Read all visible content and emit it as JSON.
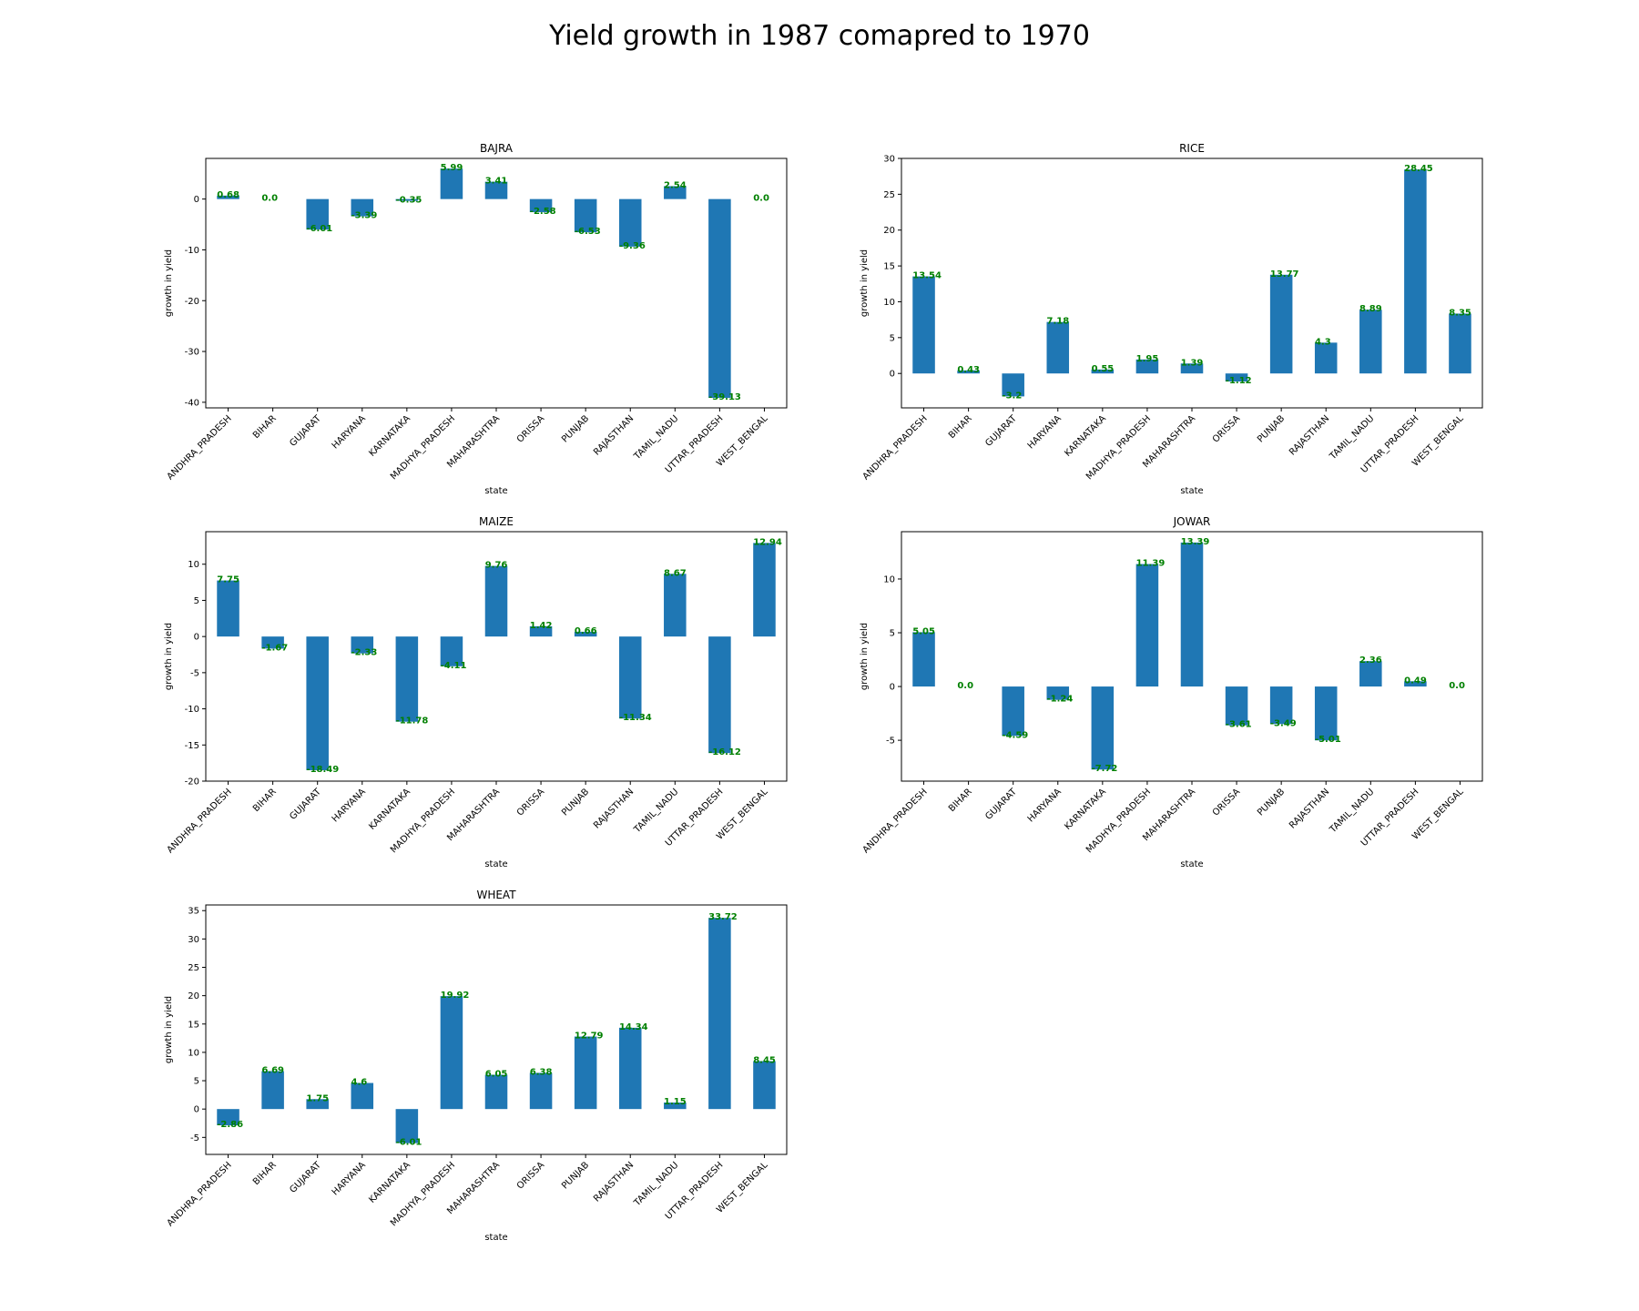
{
  "suptitle": "Yield growth in 1987 comapred to 1970",
  "bar_color": "#1f77b4",
  "label_color": "#008000",
  "chart_data": [
    {
      "type": "bar",
      "title": "BAJRA",
      "xlabel": "state",
      "ylabel": "growth in yield",
      "categories": [
        "ANDHRA_PRADESH",
        "BIHAR",
        "GUJARAT",
        "HARYANA",
        "KARNATAKA",
        "MADHYA_PRADESH",
        "MAHARASHTRA",
        "ORISSA",
        "PUNJAB",
        "RAJASTHAN",
        "TAMIL_NADU",
        "UTTAR_PRADESH",
        "WEST_BENGAL"
      ],
      "values": [
        0.68,
        0.0,
        -6.01,
        -3.39,
        -0.35,
        5.99,
        3.41,
        -2.58,
        -6.53,
        -9.36,
        2.54,
        -39.13,
        0.0
      ],
      "value_labels": [
        "0.68",
        "0.0",
        "-6.01",
        "-3.39",
        "-0.35",
        "5.99",
        "3.41",
        "-2.58",
        "-6.53",
        "-9.36",
        "2.54",
        "-39.13",
        "0.0"
      ],
      "ylim": [
        -41.1,
        8.0
      ],
      "yticks": [
        -40,
        -30,
        -20,
        -10,
        0
      ]
    },
    {
      "type": "bar",
      "title": "RICE",
      "xlabel": "state",
      "ylabel": "growth in yield",
      "categories": [
        "ANDHRA_PRADESH",
        "BIHAR",
        "GUJARAT",
        "HARYANA",
        "KARNATAKA",
        "MADHYA_PRADESH",
        "MAHARASHTRA",
        "ORISSA",
        "PUNJAB",
        "RAJASTHAN",
        "TAMIL_NADU",
        "UTTAR_PRADESH",
        "WEST_BENGAL"
      ],
      "values": [
        13.54,
        0.43,
        -3.2,
        7.18,
        0.55,
        1.95,
        1.39,
        -1.12,
        13.77,
        4.3,
        8.89,
        28.45,
        8.35
      ],
      "value_labels": [
        "13.54",
        "0.43",
        "-3.2",
        "7.18",
        "0.55",
        "1.95",
        "1.39",
        "-1.12",
        "13.77",
        "4.3",
        "8.89",
        "28.45",
        "8.35"
      ],
      "ylim": [
        -4.8,
        30.0
      ],
      "yticks": [
        0,
        5,
        10,
        15,
        20,
        25,
        30
      ]
    },
    {
      "type": "bar",
      "title": "MAIZE",
      "xlabel": "state",
      "ylabel": "growth in yield",
      "categories": [
        "ANDHRA_PRADESH",
        "BIHAR",
        "GUJARAT",
        "HARYANA",
        "KARNATAKA",
        "MADHYA_PRADESH",
        "MAHARASHTRA",
        "ORISSA",
        "PUNJAB",
        "RAJASTHAN",
        "TAMIL_NADU",
        "UTTAR_PRADESH",
        "WEST_BENGAL"
      ],
      "values": [
        7.75,
        -1.67,
        -18.49,
        -2.33,
        -11.78,
        -4.11,
        9.76,
        1.42,
        0.66,
        -11.34,
        8.67,
        -16.12,
        12.94
      ],
      "value_labels": [
        "7.75",
        "-1.67",
        "-18.49",
        "-2.33",
        "-11.78",
        "-4.11",
        "9.76",
        "1.42",
        "0.66",
        "-11.34",
        "8.67",
        "-16.12",
        "12.94"
      ],
      "ylim": [
        -20.0,
        14.5
      ],
      "yticks": [
        -20,
        -15,
        -10,
        -5,
        0,
        5,
        10
      ]
    },
    {
      "type": "bar",
      "title": "JOWAR",
      "xlabel": "state",
      "ylabel": "growth in yield",
      "categories": [
        "ANDHRA_PRADESH",
        "BIHAR",
        "GUJARAT",
        "HARYANA",
        "KARNATAKA",
        "MADHYA_PRADESH",
        "MAHARASHTRA",
        "ORISSA",
        "PUNJAB",
        "RAJASTHAN",
        "TAMIL_NADU",
        "UTTAR_PRADESH",
        "WEST_BENGAL"
      ],
      "values": [
        5.05,
        0.0,
        -4.59,
        -1.24,
        -7.72,
        11.39,
        13.39,
        -3.61,
        -3.49,
        -5.01,
        2.36,
        0.49,
        0.0
      ],
      "value_labels": [
        "5.05",
        "0.0",
        "-4.59",
        "-1.24",
        "-7.72",
        "11.39",
        "13.39",
        "-3.61",
        "-3.49",
        "-5.01",
        "2.36",
        "0.49",
        "0.0"
      ],
      "ylim": [
        -8.8,
        14.4
      ],
      "yticks": [
        -5,
        0,
        5,
        10
      ]
    },
    {
      "type": "bar",
      "title": "WHEAT",
      "xlabel": "state",
      "ylabel": "growth in yield",
      "categories": [
        "ANDHRA_PRADESH",
        "BIHAR",
        "GUJARAT",
        "HARYANA",
        "KARNATAKA",
        "MADHYA_PRADESH",
        "MAHARASHTRA",
        "ORISSA",
        "PUNJAB",
        "RAJASTHAN",
        "TAMIL_NADU",
        "UTTAR_PRADESH",
        "WEST_BENGAL"
      ],
      "values": [
        -2.86,
        6.69,
        1.75,
        4.6,
        -6.01,
        19.92,
        6.05,
        6.38,
        12.79,
        14.34,
        1.15,
        33.72,
        8.45
      ],
      "value_labels": [
        "-2.86",
        "6.69",
        "1.75",
        "4.6",
        "-6.01",
        "19.92",
        "6.05",
        "6.38",
        "12.79",
        "14.34",
        "1.15",
        "33.72",
        "8.45"
      ],
      "ylim": [
        -8.0,
        36.0
      ],
      "yticks": [
        -5,
        0,
        5,
        10,
        15,
        20,
        25,
        30,
        35
      ]
    }
  ]
}
